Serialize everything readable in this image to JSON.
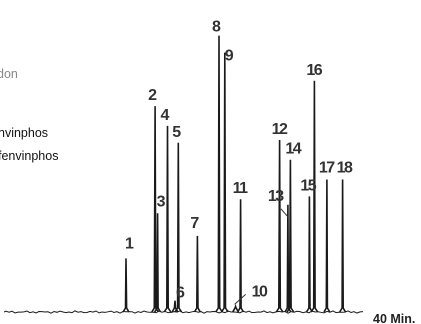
{
  "chart_data": {
    "type": "line",
    "x_unit": "Min.",
    "x_end_label": "40 Min.",
    "x_range": [
      0,
      40
    ],
    "y_range": [
      0,
      100
    ],
    "legend_fragments": [
      {
        "text": "don",
        "muted": true
      },
      {
        "text": "nvinphos",
        "muted": false
      },
      {
        "text": "fenvinphos",
        "muted": false
      }
    ],
    "peaks": [
      {
        "label": "1",
        "time": 14.7,
        "height": 19
      },
      {
        "label": "2",
        "time": 18.2,
        "height": 73
      },
      {
        "label": "3",
        "time": 18.5,
        "height": 35
      },
      {
        "label": "4",
        "time": 19.7,
        "height": 66
      },
      {
        "label": "5",
        "time": 21.0,
        "height": 60
      },
      {
        "label": "6",
        "time": 20.6,
        "height": 4
      },
      {
        "label": "7",
        "time": 23.3,
        "height": 27
      },
      {
        "label": "8",
        "time": 25.9,
        "height": 98
      },
      {
        "label": "9",
        "time": 26.6,
        "height": 92
      },
      {
        "label": "10",
        "time": 27.9,
        "height": 2
      },
      {
        "label": "11",
        "time": 28.5,
        "height": 40
      },
      {
        "label": "12",
        "time": 33.2,
        "height": 61
      },
      {
        "label": "13",
        "time": 34.2,
        "height": 38
      },
      {
        "label": "14",
        "time": 34.5,
        "height": 54
      },
      {
        "label": "15",
        "time": 36.8,
        "height": 41
      },
      {
        "label": "16",
        "time": 37.4,
        "height": 82
      },
      {
        "label": "17",
        "time": 38.9,
        "height": 47
      },
      {
        "label": "18",
        "time": 40.8,
        "height": 47
      }
    ]
  }
}
